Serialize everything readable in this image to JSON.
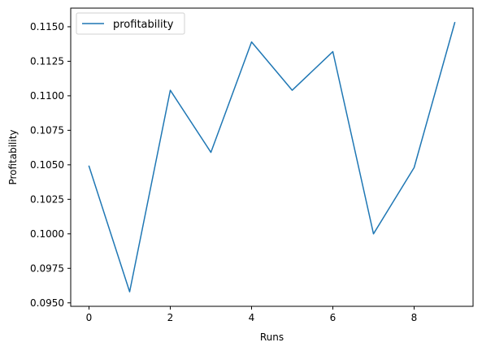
{
  "chart_data": {
    "type": "line",
    "xlabel": "Runs",
    "ylabel": "Profitability",
    "x": [
      0,
      1,
      2,
      3,
      4,
      5,
      6,
      7,
      8,
      9
    ],
    "series": [
      {
        "name": "profitability",
        "color": "#1f77b4",
        "values": [
          0.1049,
          0.0958,
          0.1104,
          0.1059,
          0.1139,
          0.1104,
          0.1132,
          0.1,
          0.1048,
          0.1153
        ]
      }
    ],
    "xlim": [
      -0.45,
      9.45
    ],
    "ylim": [
      0.09475,
      0.11635
    ],
    "x_ticks": [
      0,
      2,
      4,
      6,
      8
    ],
    "x_tick_labels": [
      "0",
      "2",
      "4",
      "6",
      "8"
    ],
    "y_ticks": [
      0.095,
      0.0975,
      0.1,
      0.1025,
      0.105,
      0.1075,
      0.11,
      0.1125,
      0.115
    ],
    "y_tick_labels": [
      "0.0950",
      "0.0975",
      "0.1000",
      "0.1025",
      "0.1050",
      "0.1075",
      "0.1100",
      "0.1125",
      "0.1150"
    ],
    "grid": false,
    "legend_position": "top-left"
  }
}
